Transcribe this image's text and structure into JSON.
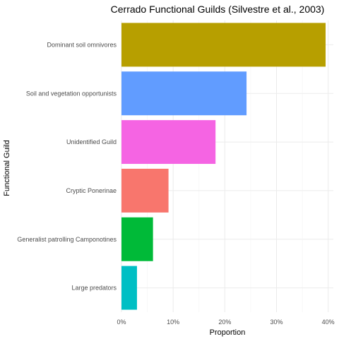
{
  "chart_data": {
    "type": "bar",
    "orientation": "horizontal",
    "title": "Cerrado Functional Guilds (Silvestre et al., 2003)",
    "xlabel": "Proportion",
    "ylabel": "Functional Guild",
    "categories": [
      "Dominant soil omnivores",
      "Soil and vegetation opportunists",
      "Unidentified Guild",
      "Cryptic Ponerinae",
      "Generalist patrolling Camponotines",
      "Large predators"
    ],
    "values": [
      0.395,
      0.242,
      0.182,
      0.091,
      0.061,
      0.03
    ],
    "colors": [
      "#B79F00",
      "#619CFF",
      "#F564E3",
      "#F8766D",
      "#00BA38",
      "#00BFC4"
    ],
    "xlim": [
      0,
      0.41
    ],
    "xticks": [
      0,
      0.1,
      0.2,
      0.3,
      0.4
    ],
    "xtick_labels": [
      "0%",
      "10%",
      "20%",
      "30%",
      "40%"
    ],
    "grid": true,
    "legend": "none"
  }
}
